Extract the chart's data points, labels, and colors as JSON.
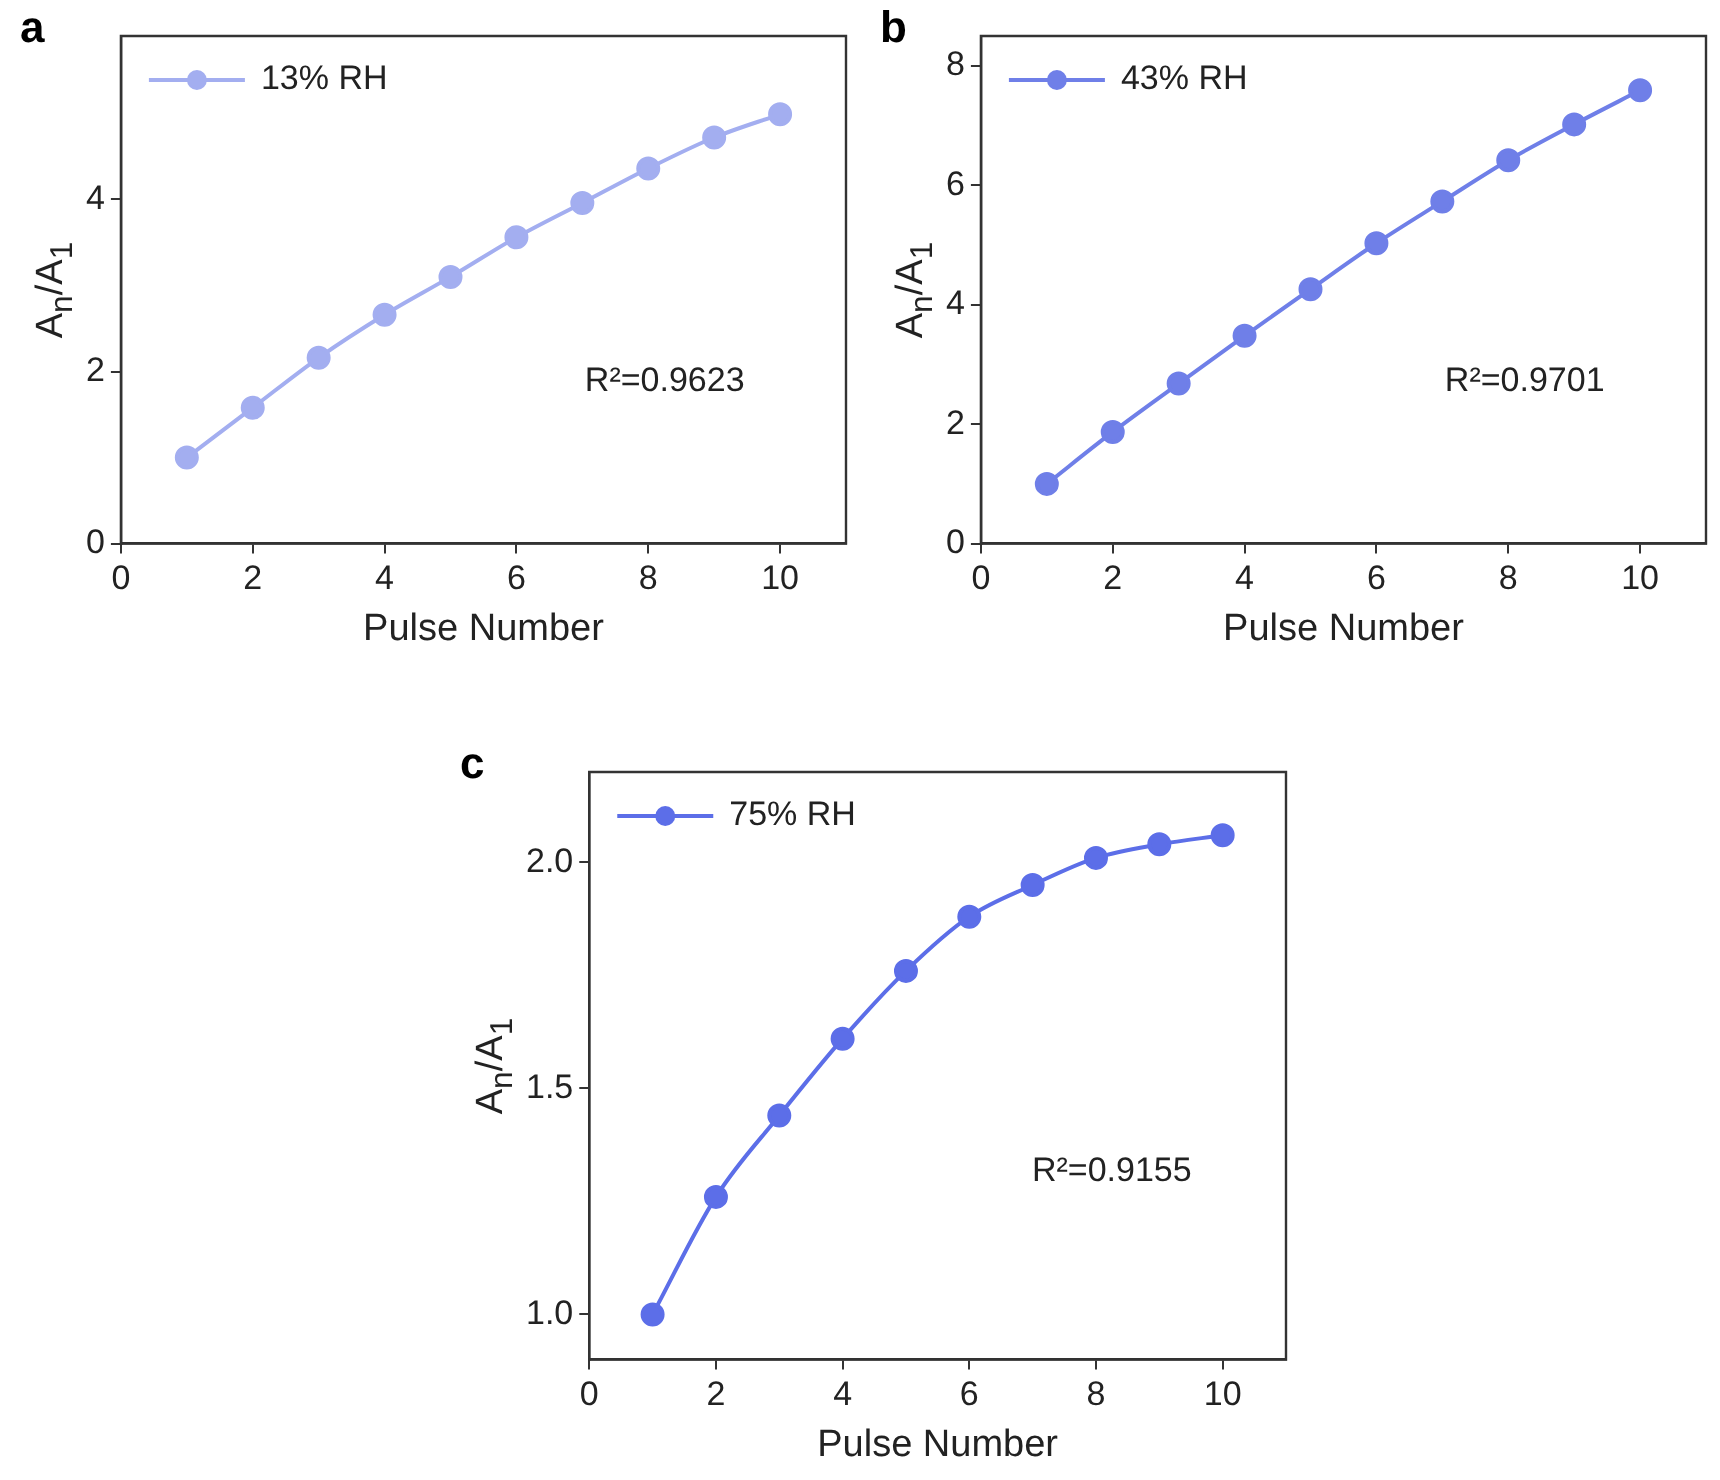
{
  "chart_data": [
    {
      "type": "line",
      "title": "a",
      "xlabel": "Pulse Number",
      "ylabel": "A$_{n}$/A$_{1}$",
      "x": [
        1,
        2,
        3,
        4,
        5,
        6,
        7,
        8,
        9,
        10
      ],
      "xlim": [
        0,
        11
      ],
      "xticks": [
        0,
        2,
        4,
        6,
        8,
        10
      ],
      "ylim": [
        0,
        5.9
      ],
      "yticks": [
        0,
        2,
        4
      ],
      "legend": "top left",
      "marker": "circle",
      "annotations": [
        "R²=0.9623"
      ],
      "series": [
        {
          "name": "13% RH",
          "color": "#a3aef0",
          "values": [
            1.0,
            1.58,
            2.16,
            2.66,
            3.1,
            3.56,
            3.96,
            4.36,
            4.72,
            4.99
          ]
        }
      ]
    },
    {
      "type": "line",
      "title": "b",
      "xlabel": "Pulse Number",
      "ylabel": "A$_{n}$/A$_{1}$",
      "x": [
        1,
        2,
        3,
        4,
        5,
        6,
        7,
        8,
        9,
        10
      ],
      "xlim": [
        0,
        11
      ],
      "xticks": [
        0,
        2,
        4,
        6,
        8,
        10
      ],
      "ylim": [
        0,
        8.5
      ],
      "yticks": [
        0,
        2,
        4,
        6,
        8
      ],
      "legend": "top left",
      "marker": "circle",
      "annotations": [
        "R²=0.9701"
      ],
      "series": [
        {
          "name": "43% RH",
          "color": "#6f7fe8",
          "values": [
            1.0,
            1.87,
            2.68,
            3.48,
            4.26,
            5.03,
            5.73,
            6.42,
            7.02,
            7.59
          ]
        }
      ]
    },
    {
      "type": "line",
      "title": "c",
      "xlabel": "Pulse Number",
      "ylabel": "A$_{n}$/A$_{1}$",
      "x": [
        1,
        2,
        3,
        4,
        5,
        6,
        7,
        8,
        9,
        10
      ],
      "xlim": [
        0,
        11
      ],
      "xticks": [
        0,
        2,
        4,
        6,
        8,
        10
      ],
      "ylim": [
        0.9,
        2.2
      ],
      "yticks": [
        {
          "value": 1,
          "label": "1.0"
        },
        1.5,
        {
          "value": 2,
          "label": "2.0"
        }
      ],
      "legend": "top left",
      "marker": "circle",
      "annotations": [
        "R²=0.9155"
      ],
      "series": [
        {
          "name": "75% RH",
          "color": "#5c6ee8",
          "values": [
            1.0,
            1.26,
            1.44,
            1.61,
            1.76,
            1.88,
            1.95,
            2.01,
            2.04,
            2.06
          ]
        }
      ]
    }
  ]
}
